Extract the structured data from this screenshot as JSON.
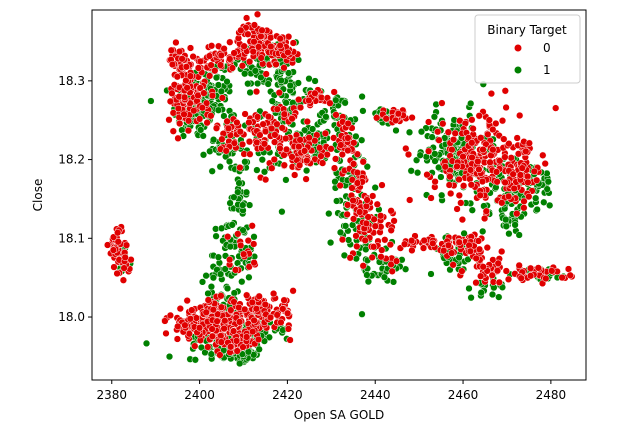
{
  "chart_data": {
    "type": "scatter",
    "title": "",
    "xlabel": "Open SA GOLD",
    "ylabel": "Close",
    "xlim": [
      2375.5,
      2488
    ],
    "ylim": [
      17.92,
      18.39
    ],
    "xticks": [
      2380,
      2400,
      2420,
      2440,
      2460,
      2480
    ],
    "yticks": [
      18.0,
      18.1,
      18.2,
      18.3
    ],
    "ytick_labels": [
      "18.0",
      "18.1",
      "18.2",
      "18.3"
    ],
    "grid": false,
    "legend": {
      "title": "Binary Target",
      "placement": "top-right",
      "entries": [
        {
          "label": "0",
          "color": "#e00000"
        },
        {
          "label": "1",
          "color": "#008000"
        }
      ]
    },
    "series": [
      {
        "name": "0",
        "color": "#e00000",
        "clusters": [
          {
            "cx": 2381,
            "cy": 18.09,
            "sx": 0.8,
            "sy": 0.015,
            "n": 40
          },
          {
            "cx": 2383,
            "cy": 18.07,
            "sx": 0.6,
            "sy": 0.008,
            "n": 15
          },
          {
            "cx": 2398,
            "cy": 18.28,
            "sx": 2.5,
            "sy": 0.02,
            "n": 120
          },
          {
            "cx": 2396,
            "cy": 18.325,
            "sx": 1.5,
            "sy": 0.01,
            "n": 40
          },
          {
            "cx": 2405,
            "cy": 18.33,
            "sx": 3,
            "sy": 0.008,
            "n": 50
          },
          {
            "cx": 2413,
            "cy": 18.35,
            "sx": 2,
            "sy": 0.012,
            "n": 80
          },
          {
            "cx": 2419,
            "cy": 18.34,
            "sx": 1.5,
            "sy": 0.01,
            "n": 40
          },
          {
            "cx": 2410,
            "cy": 18.23,
            "sx": 3,
            "sy": 0.02,
            "n": 60
          },
          {
            "cx": 2418,
            "cy": 18.24,
            "sx": 2.5,
            "sy": 0.025,
            "n": 60
          },
          {
            "cx": 2424,
            "cy": 18.21,
            "sx": 3,
            "sy": 0.012,
            "n": 60
          },
          {
            "cx": 2427,
            "cy": 18.28,
            "sx": 1.5,
            "sy": 0.005,
            "n": 20
          },
          {
            "cx": 2433,
            "cy": 18.22,
            "sx": 1.5,
            "sy": 0.02,
            "n": 40
          },
          {
            "cx": 2436,
            "cy": 18.15,
            "sx": 2,
            "sy": 0.03,
            "n": 50
          },
          {
            "cx": 2441,
            "cy": 18.11,
            "sx": 2.5,
            "sy": 0.02,
            "n": 50
          },
          {
            "cx": 2445,
            "cy": 18.255,
            "sx": 2,
            "sy": 0.005,
            "n": 30
          },
          {
            "cx": 2452,
            "cy": 18.095,
            "sx": 3,
            "sy": 0.005,
            "n": 30
          },
          {
            "cx": 2461,
            "cy": 18.09,
            "sx": 3,
            "sy": 0.008,
            "n": 50
          },
          {
            "cx": 2463,
            "cy": 18.2,
            "sx": 5,
            "sy": 0.03,
            "n": 200
          },
          {
            "cx": 2472,
            "cy": 18.18,
            "sx": 3,
            "sy": 0.02,
            "n": 80
          },
          {
            "cx": 2476,
            "cy": 18.055,
            "sx": 4,
            "sy": 0.005,
            "n": 40
          },
          {
            "cx": 2466,
            "cy": 18.06,
            "sx": 3,
            "sy": 0.008,
            "n": 30
          },
          {
            "cx": 2403,
            "cy": 17.995,
            "sx": 5,
            "sy": 0.012,
            "n": 200
          },
          {
            "cx": 2414,
            "cy": 18.005,
            "sx": 4,
            "sy": 0.01,
            "n": 120
          },
          {
            "cx": 2408,
            "cy": 17.97,
            "sx": 3,
            "sy": 0.008,
            "n": 60
          },
          {
            "cx": 2397,
            "cy": 17.985,
            "sx": 2,
            "sy": 0.006,
            "n": 20
          },
          {
            "cx": 2410,
            "cy": 18.08,
            "sx": 2,
            "sy": 0.02,
            "n": 20
          }
        ]
      },
      {
        "name": "1",
        "color": "#008000",
        "clusters": [
          {
            "cx": 2382,
            "cy": 18.075,
            "sx": 0.8,
            "sy": 0.01,
            "n": 30
          },
          {
            "cx": 2399,
            "cy": 18.265,
            "sx": 2.5,
            "sy": 0.02,
            "n": 110
          },
          {
            "cx": 2404,
            "cy": 18.29,
            "sx": 2,
            "sy": 0.02,
            "n": 60
          },
          {
            "cx": 2406,
            "cy": 18.22,
            "sx": 2,
            "sy": 0.015,
            "n": 40
          },
          {
            "cx": 2409,
            "cy": 18.15,
            "sx": 1,
            "sy": 0.04,
            "n": 40
          },
          {
            "cx": 2413,
            "cy": 18.32,
            "sx": 2,
            "sy": 0.015,
            "n": 40
          },
          {
            "cx": 2419,
            "cy": 18.31,
            "sx": 1.5,
            "sy": 0.02,
            "n": 50
          },
          {
            "cx": 2416,
            "cy": 18.22,
            "sx": 3,
            "sy": 0.03,
            "n": 50
          },
          {
            "cx": 2422,
            "cy": 18.27,
            "sx": 2,
            "sy": 0.015,
            "n": 30
          },
          {
            "cx": 2426,
            "cy": 18.215,
            "sx": 3,
            "sy": 0.012,
            "n": 60
          },
          {
            "cx": 2431,
            "cy": 18.26,
            "sx": 2,
            "sy": 0.015,
            "n": 40
          },
          {
            "cx": 2434,
            "cy": 18.17,
            "sx": 2,
            "sy": 0.04,
            "n": 60
          },
          {
            "cx": 2438,
            "cy": 18.1,
            "sx": 2,
            "sy": 0.025,
            "n": 40
          },
          {
            "cx": 2442,
            "cy": 18.06,
            "sx": 2,
            "sy": 0.008,
            "n": 30
          },
          {
            "cx": 2442,
            "cy": 18.255,
            "sx": 2,
            "sy": 0.006,
            "n": 30
          },
          {
            "cx": 2458,
            "cy": 18.08,
            "sx": 3,
            "sy": 0.012,
            "n": 40
          },
          {
            "cx": 2466,
            "cy": 18.04,
            "sx": 2,
            "sy": 0.008,
            "n": 20
          },
          {
            "cx": 2458,
            "cy": 18.21,
            "sx": 4,
            "sy": 0.025,
            "n": 150
          },
          {
            "cx": 2470,
            "cy": 18.14,
            "sx": 3,
            "sy": 0.02,
            "n": 60
          },
          {
            "cx": 2474,
            "cy": 18.17,
            "sx": 4,
            "sy": 0.015,
            "n": 80
          },
          {
            "cx": 2478,
            "cy": 18.055,
            "sx": 3,
            "sy": 0.004,
            "n": 30
          },
          {
            "cx": 2406,
            "cy": 18.05,
            "sx": 2,
            "sy": 0.04,
            "n": 80
          },
          {
            "cx": 2406,
            "cy": 17.975,
            "sx": 4,
            "sy": 0.012,
            "n": 160
          },
          {
            "cx": 2413,
            "cy": 17.985,
            "sx": 3,
            "sy": 0.01,
            "n": 60
          },
          {
            "cx": 2410,
            "cy": 17.955,
            "sx": 2,
            "sy": 0.006,
            "n": 40
          },
          {
            "cx": 2411,
            "cy": 18.08,
            "sx": 1,
            "sy": 0.02,
            "n": 20
          },
          {
            "cx": 2388,
            "cy": 17.967,
            "sx": 0.1,
            "sy": 0.001,
            "n": 1
          }
        ]
      }
    ]
  }
}
